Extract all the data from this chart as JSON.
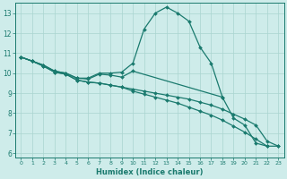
{
  "xlabel": "Humidex (Indice chaleur)",
  "xlim": [
    -0.5,
    23.5
  ],
  "ylim": [
    5.8,
    13.5
  ],
  "yticks": [
    6,
    7,
    8,
    9,
    10,
    11,
    12,
    13
  ],
  "xticks": [
    0,
    1,
    2,
    3,
    4,
    5,
    6,
    7,
    8,
    9,
    10,
    11,
    12,
    13,
    14,
    15,
    16,
    17,
    18,
    19,
    20,
    21,
    22,
    23
  ],
  "bg_color": "#ceecea",
  "grid_color": "#aad4d0",
  "line_color": "#1a7a6e",
  "lines": [
    {
      "x": [
        0,
        1,
        2,
        3,
        4,
        5,
        6,
        7,
        8,
        9,
        10,
        11,
        12,
        13,
        14,
        15,
        16,
        17,
        18
      ],
      "y": [
        10.8,
        10.6,
        10.4,
        10.1,
        10.0,
        9.75,
        9.75,
        10.0,
        10.0,
        10.05,
        10.5,
        12.2,
        13.0,
        13.3,
        13.0,
        12.6,
        11.3,
        10.5,
        8.8
      ]
    },
    {
      "x": [
        0,
        1,
        2,
        3,
        4,
        5,
        6,
        7,
        8,
        9,
        10,
        18,
        19,
        20,
        21,
        22
      ],
      "y": [
        10.8,
        10.6,
        10.4,
        10.1,
        10.0,
        9.75,
        9.7,
        9.95,
        9.9,
        9.8,
        10.1,
        8.8,
        7.75,
        7.4,
        6.5,
        6.35
      ]
    },
    {
      "x": [
        0,
        1,
        2,
        3,
        4,
        5,
        6,
        7,
        8,
        9,
        10,
        11,
        12,
        13,
        14,
        15,
        16,
        17,
        18,
        19,
        20,
        21,
        22,
        23
      ],
      "y": [
        10.8,
        10.6,
        10.35,
        10.05,
        9.95,
        9.65,
        9.55,
        9.5,
        9.4,
        9.3,
        9.2,
        9.1,
        9.0,
        8.9,
        8.8,
        8.7,
        8.55,
        8.4,
        8.2,
        7.95,
        7.7,
        7.4,
        6.6,
        6.35
      ]
    },
    {
      "x": [
        0,
        1,
        2,
        3,
        4,
        5,
        6,
        7,
        8,
        9,
        10,
        11,
        12,
        13,
        14,
        15,
        16,
        17,
        18,
        19,
        20,
        21,
        22,
        23
      ],
      "y": [
        10.8,
        10.6,
        10.35,
        10.05,
        9.95,
        9.65,
        9.55,
        9.5,
        9.4,
        9.3,
        9.1,
        8.95,
        8.8,
        8.65,
        8.5,
        8.3,
        8.1,
        7.9,
        7.65,
        7.35,
        7.05,
        6.7,
        6.35,
        6.35
      ]
    }
  ]
}
